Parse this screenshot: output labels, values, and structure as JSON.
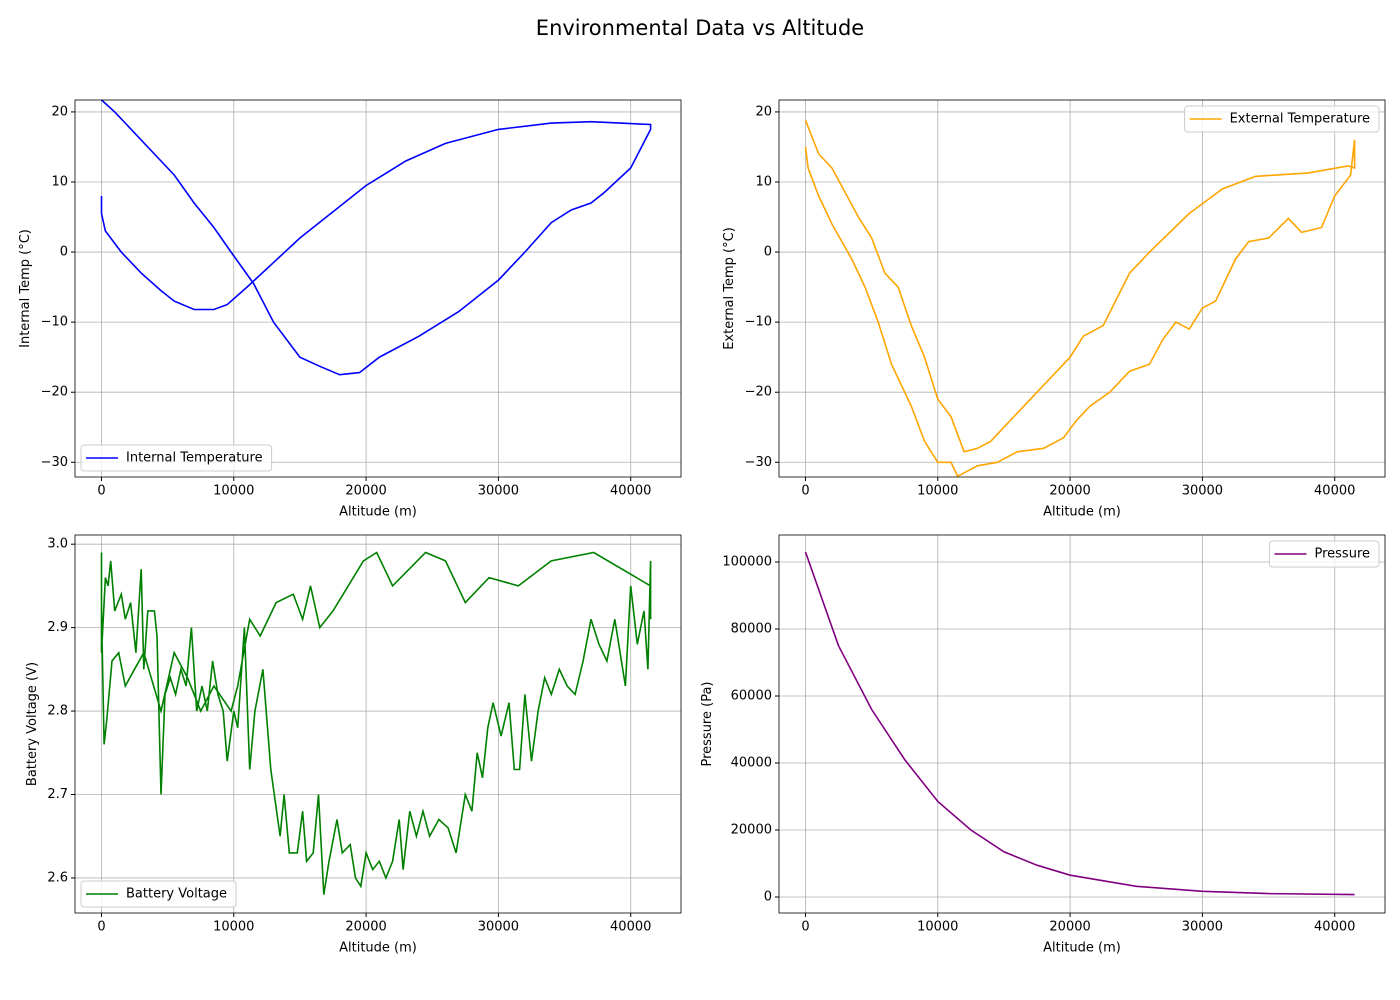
{
  "title": "Environmental Data vs Altitude",
  "chart_data": [
    {
      "type": "line",
      "xlabel": "Altitude (m)",
      "ylabel": "Internal Temp (°C)",
      "xlim": [
        -2000,
        43800
      ],
      "ylim": [
        -32.1,
        21.7
      ],
      "xticks": [
        0,
        10000,
        20000,
        30000,
        40000
      ],
      "yticks": [
        {
          "value": -30,
          "label": "−30"
        },
        {
          "value": -20,
          "label": "−20"
        },
        {
          "value": -10,
          "label": "−10"
        },
        0,
        10,
        20
      ],
      "grid": true,
      "legend": "lower left",
      "x": [
        0,
        0,
        300,
        1500,
        3000,
        4500,
        5500,
        7000,
        8500,
        9500,
        11000,
        13000,
        15000,
        17000,
        20000,
        23000,
        26000,
        30000,
        34000,
        37000,
        41500,
        41500,
        40000,
        38000,
        37000,
        35500,
        34000,
        32000,
        30000,
        27000,
        24000,
        21000,
        19500,
        18000,
        16500,
        15000,
        13000,
        11500,
        9800,
        8500,
        7000,
        5500,
        4000,
        2500,
        1000,
        0
      ],
      "series": [
        {
          "name": "Internal Temperature",
          "color": "#0000ff",
          "values": [
            8,
            5.5,
            3,
            0,
            -3,
            -5.5,
            -7,
            -8.2,
            -8.2,
            -7.5,
            -5,
            -1.5,
            2,
            5,
            9.5,
            13,
            15.5,
            17.5,
            18.4,
            18.6,
            18.2,
            17.5,
            12,
            8.5,
            7,
            6,
            4.2,
            0,
            -4,
            -8.5,
            -12,
            -15,
            -17.2,
            -17.5,
            -16.3,
            -15,
            -10,
            -4.5,
            0,
            3.5,
            7,
            11,
            14,
            17,
            20,
            21.7
          ]
        }
      ]
    },
    {
      "type": "line",
      "xlabel": "Altitude (m)",
      "ylabel": "External Temp (°C)",
      "xlim": [
        -2000,
        43800
      ],
      "ylim": [
        -32.1,
        21.7
      ],
      "xticks": [
        0,
        10000,
        20000,
        30000,
        40000
      ],
      "yticks": [
        {
          "value": -30,
          "label": "−30"
        },
        {
          "value": -20,
          "label": "−20"
        },
        {
          "value": -10,
          "label": "−10"
        },
        0,
        10,
        20
      ],
      "grid": true,
      "legend": "upper right",
      "x": [
        0,
        1000,
        2000,
        3000,
        4000,
        5000,
        6000,
        7000,
        8000,
        9000,
        10000,
        11000,
        11500,
        12000,
        13000,
        14000,
        15000,
        17000,
        18000,
        20000,
        21000,
        22500,
        24500,
        26000,
        29000,
        31500,
        34000,
        38000,
        41000,
        41500,
        41500,
        41200,
        40000,
        39000,
        37500,
        36500,
        35000,
        33500,
        32500,
        31000,
        30000,
        29000,
        28000,
        27000,
        26000,
        24500,
        23000,
        21500,
        20500,
        19500,
        18000,
        16000,
        14500,
        13000,
        11500,
        11000,
        10000,
        9000,
        8000,
        6500,
        5500,
        4500,
        3500,
        2000,
        1000,
        200,
        0
      ],
      "series": [
        {
          "name": "External Temperature",
          "color": "#ffa500",
          "values": [
            18.8,
            14,
            12,
            8.5,
            5,
            2,
            -3,
            -5,
            -10.5,
            -15,
            -21,
            -23.5,
            -26,
            -28.5,
            -28,
            -27,
            -25,
            -21,
            -19,
            -15,
            -12,
            -10.5,
            -3,
            0,
            5.5,
            9,
            10.8,
            11.3,
            12.3,
            12,
            16,
            11,
            8,
            3.5,
            2.8,
            4.8,
            2,
            1.5,
            -1,
            -7,
            -8,
            -11,
            -10,
            -12.5,
            -16,
            -17,
            -20,
            -22,
            -24,
            -26.5,
            -28,
            -28.5,
            -30,
            -30.5,
            -32,
            -30,
            -30,
            -27,
            -22,
            -16,
            -10,
            -5,
            -1,
            4,
            8,
            12,
            15
          ]
        }
      ]
    },
    {
      "type": "line",
      "xlabel": "Altitude (m)",
      "ylabel": "Battery Voltage (V)",
      "xlim": [
        -2000,
        43800
      ],
      "ylim": [
        2.558,
        3.011
      ],
      "xticks": [
        0,
        10000,
        20000,
        30000,
        40000
      ],
      "yticks": [
        2.6,
        2.7,
        2.8,
        2.9,
        {
          "value": 3,
          "label": "3.0"
        }
      ],
      "grid": true,
      "legend": "lower left",
      "x": [
        0,
        0,
        300,
        500,
        700,
        1000,
        1500,
        1800,
        2200,
        2600,
        3000,
        3200,
        3500,
        4000,
        4200,
        4500,
        4800,
        5200,
        5600,
        6000,
        6400,
        6800,
        7200,
        7600,
        8000,
        8400,
        8800,
        9200,
        9500,
        10000,
        10300,
        10800,
        11200,
        11600,
        12200,
        12800,
        13500,
        13800,
        14200,
        14800,
        15200,
        15500,
        16000,
        16400,
        16800,
        17200,
        17800,
        18200,
        18800,
        19200,
        19600,
        20000,
        20500,
        21000,
        21500,
        22000,
        22500,
        22800,
        23300,
        23800,
        24300,
        24800,
        25500,
        26200,
        26800,
        27500,
        28000,
        28400,
        28800,
        29200,
        29600,
        30200,
        30800,
        31200,
        31600,
        32000,
        32500,
        33000,
        33500,
        34000,
        34600,
        35200,
        35800,
        36400,
        37000,
        37600,
        38200,
        38800,
        39200,
        39600,
        40000,
        40500,
        41000,
        41300,
        41500,
        41500,
        41500,
        37200,
        34000,
        31500,
        29300,
        27500,
        26000,
        24500,
        22000,
        20800,
        19800,
        17500,
        16500,
        15800,
        15200,
        14500,
        13200,
        12000,
        11200,
        10300,
        9800,
        8500,
        7500,
        6500,
        5500,
        4500,
        3200,
        2500,
        1800,
        1300,
        800,
        400,
        200,
        0
      ],
      "series": [
        {
          "name": "Battery Voltage",
          "color": "#008000",
          "values": [
            2.99,
            2.87,
            2.96,
            2.95,
            2.98,
            2.92,
            2.94,
            2.91,
            2.93,
            2.87,
            2.97,
            2.85,
            2.92,
            2.92,
            2.89,
            2.7,
            2.82,
            2.84,
            2.82,
            2.85,
            2.83,
            2.9,
            2.8,
            2.83,
            2.8,
            2.86,
            2.82,
            2.8,
            2.74,
            2.8,
            2.78,
            2.9,
            2.73,
            2.8,
            2.85,
            2.73,
            2.65,
            2.7,
            2.63,
            2.63,
            2.68,
            2.62,
            2.63,
            2.7,
            2.58,
            2.62,
            2.67,
            2.63,
            2.64,
            2.6,
            2.59,
            2.63,
            2.61,
            2.62,
            2.6,
            2.62,
            2.67,
            2.61,
            2.68,
            2.65,
            2.68,
            2.65,
            2.67,
            2.66,
            2.63,
            2.7,
            2.68,
            2.75,
            2.72,
            2.78,
            2.81,
            2.77,
            2.81,
            2.73,
            2.73,
            2.82,
            2.74,
            2.8,
            2.84,
            2.82,
            2.85,
            2.83,
            2.82,
            2.86,
            2.91,
            2.88,
            2.86,
            2.91,
            2.87,
            2.83,
            2.95,
            2.88,
            2.92,
            2.85,
            2.98,
            2.91,
            2.95,
            2.99,
            2.98,
            2.95,
            2.96,
            2.93,
            2.98,
            2.99,
            2.95,
            2.99,
            2.98,
            2.92,
            2.9,
            2.95,
            2.91,
            2.94,
            2.93,
            2.89,
            2.91,
            2.83,
            2.8,
            2.83,
            2.8,
            2.84,
            2.87,
            2.8,
            2.87,
            2.85,
            2.83,
            2.87,
            2.86,
            2.79,
            2.76,
            2.92
          ]
        }
      ]
    },
    {
      "type": "line",
      "xlabel": "Altitude (m)",
      "ylabel": "Pressure (Pa)",
      "xlim": [
        -2000,
        43800
      ],
      "ylim": [
        -4780,
        108060
      ],
      "xticks": [
        0,
        10000,
        20000,
        30000,
        40000
      ],
      "yticks": [
        0,
        20000,
        40000,
        60000,
        80000,
        100000
      ],
      "grid": true,
      "legend": "upper right",
      "x": [
        0,
        2500,
        5000,
        7500,
        10000,
        12500,
        15000,
        17500,
        20000,
        25000,
        30000,
        35000,
        41500
      ],
      "series": [
        {
          "name": "Pressure",
          "color": "#800080",
          "values": [
            103000,
            75000,
            56000,
            41000,
            28500,
            20000,
            13500,
            9500,
            6500,
            3200,
            1700,
            1000,
            700
          ]
        }
      ]
    }
  ]
}
